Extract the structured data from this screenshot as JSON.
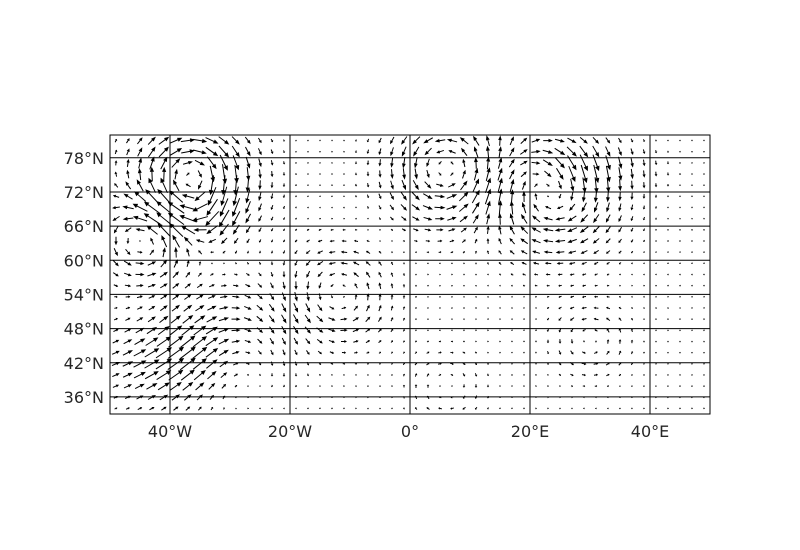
{
  "map": {
    "lon_range": [
      -50,
      50
    ],
    "lat_range": [
      33,
      82
    ],
    "gridlines": {
      "lons": [
        -40,
        -20,
        0,
        20,
        40
      ],
      "lats": [
        36,
        42,
        48,
        54,
        60,
        66,
        72,
        78
      ]
    },
    "x_ticks": [
      {
        "value": -40,
        "label": "40°W"
      },
      {
        "value": -20,
        "label": "20°W"
      },
      {
        "value": 0,
        "label": "0°"
      },
      {
        "value": 20,
        "label": "20°E"
      },
      {
        "value": 40,
        "label": "40°E"
      }
    ],
    "y_ticks": [
      {
        "value": 78,
        "label": "78°N"
      },
      {
        "value": 72,
        "label": "72°N"
      },
      {
        "value": 66,
        "label": "66°N"
      },
      {
        "value": 60,
        "label": "60°N"
      },
      {
        "value": 54,
        "label": "54°N"
      },
      {
        "value": 48,
        "label": "48°N"
      },
      {
        "value": 42,
        "label": "42°N"
      },
      {
        "value": 36,
        "label": "36°N"
      }
    ],
    "quiver": {
      "grid_cols": 50,
      "grid_rows": 25,
      "arrow_color": "#000000"
    },
    "colors": {
      "gridline": "#000000",
      "frame": "#000000",
      "tick_text": "#262626"
    }
  }
}
